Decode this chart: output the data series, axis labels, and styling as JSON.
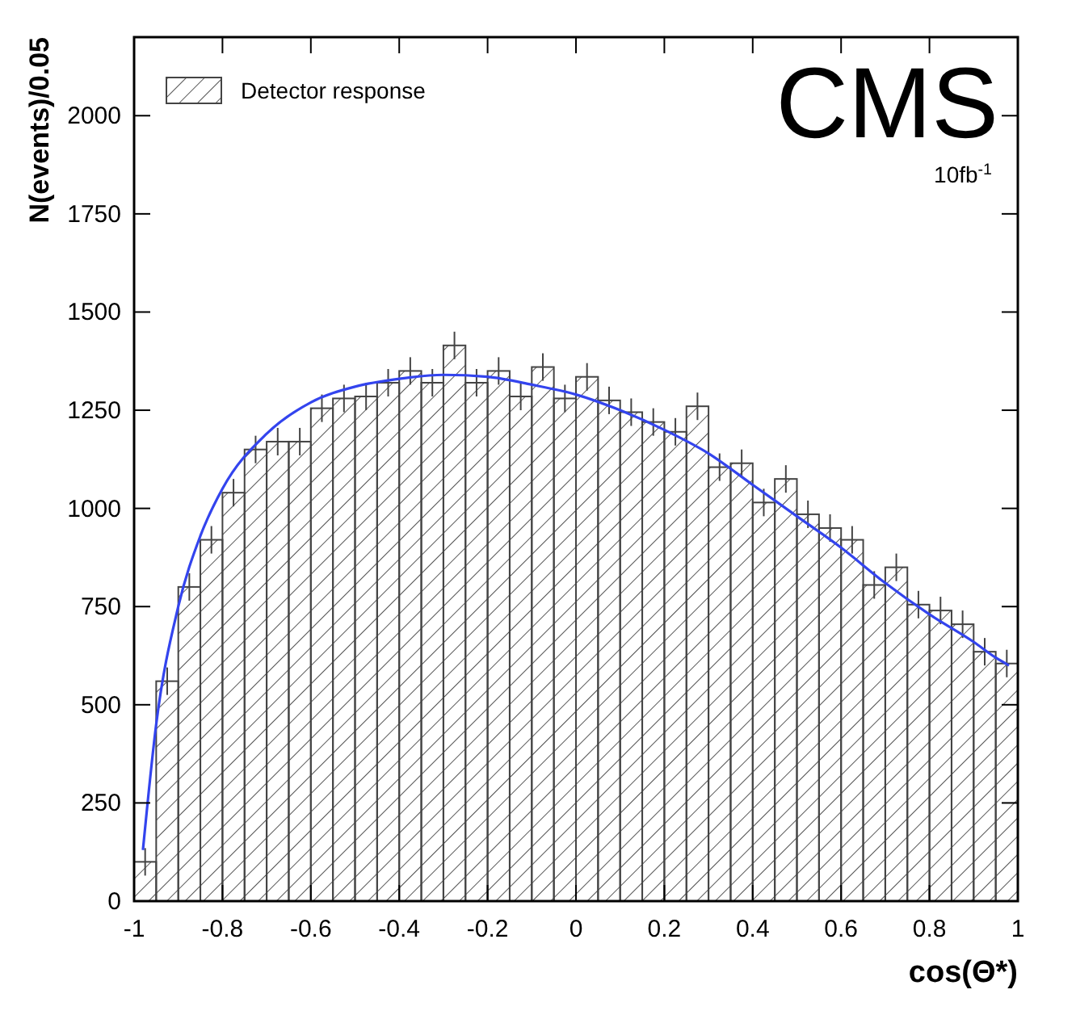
{
  "chart_data": {
    "type": "histogram",
    "xlabel": "cos(Θ*)",
    "ylabel": "N(events)/0.05",
    "annotations": [
      "CMS",
      "10fb$^{-1}$"
    ],
    "bins": [
      -1,
      -0.95,
      -0.9,
      -0.85,
      -0.8,
      -0.75,
      -0.7,
      -0.65,
      -0.6,
      -0.55,
      -0.5,
      -0.45,
      -0.4,
      -0.35,
      -0.3,
      -0.25,
      -0.2,
      -0.15,
      -0.1,
      -0.05,
      0,
      0.05,
      0.1,
      0.15,
      0.2,
      0.25,
      0.3,
      0.35,
      0.4,
      0.45,
      0.5,
      0.55,
      0.6,
      0.65,
      0.7,
      0.75,
      0.8,
      0.85,
      0.9,
      0.95,
      1
    ],
    "series": [
      {
        "name": "Detector response",
        "color": "#444444",
        "values": [
          100,
          560,
          800,
          920,
          1040,
          1150,
          1170,
          1170,
          1255,
          1280,
          1285,
          1320,
          1350,
          1320,
          1415,
          1320,
          1350,
          1285,
          1360,
          1280,
          1335,
          1275,
          1245,
          1220,
          1195,
          1260,
          1105,
          1115,
          1015,
          1075,
          985,
          950,
          920,
          805,
          850,
          755,
          740,
          705,
          635,
          605
        ],
        "errors": [
          35,
          35,
          35,
          35,
          35,
          35,
          35,
          35,
          35,
          35,
          35,
          35,
          35,
          35,
          35,
          35,
          35,
          35,
          35,
          35,
          35,
          35,
          35,
          35,
          35,
          35,
          35,
          35,
          35,
          35,
          35,
          35,
          35,
          35,
          35,
          35,
          35,
          35,
          35,
          35
        ]
      },
      {
        "type": "line",
        "color": "#3344ee",
        "x": [
          -0.98,
          -0.95,
          -0.9,
          -0.85,
          -0.8,
          -0.7,
          -0.6,
          -0.5,
          -0.4,
          -0.3,
          -0.2,
          -0.1,
          0,
          0.1,
          0.2,
          0.3,
          0.4,
          0.5,
          0.6,
          0.7,
          0.8,
          0.9,
          0.95,
          0.98
        ],
        "values": [
          130,
          450,
          750,
          930,
          1050,
          1190,
          1270,
          1310,
          1330,
          1340,
          1335,
          1315,
          1290,
          1250,
          1200,
          1140,
          1060,
          980,
          900,
          810,
          730,
          660,
          620,
          600
        ]
      }
    ],
    "xlim": [
      -1,
      1
    ],
    "xticks": [
      -1,
      -0.8,
      -0.6,
      -0.4,
      -0.2,
      0,
      0.2,
      0.4,
      0.6,
      0.8,
      1
    ],
    "ylim": [
      0,
      2200
    ],
    "yticks": [
      0,
      250,
      500,
      750,
      1000,
      1250,
      1500,
      1750,
      2000
    ],
    "legend": "top left",
    "line_style": "solid",
    "marker": "none"
  }
}
